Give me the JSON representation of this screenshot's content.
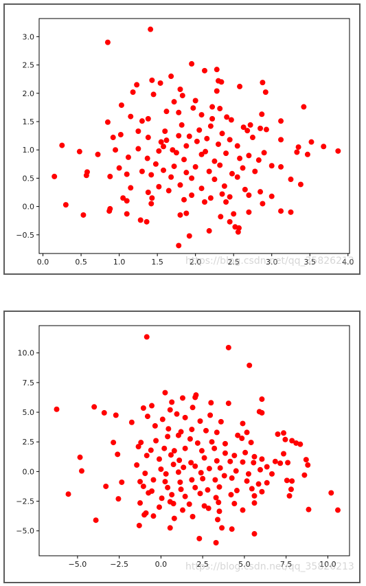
{
  "watermark_top": "https://blog.csdn.net/qq_35826213",
  "watermark_bottom": "https://blog.csdn.net/qq_35826213",
  "chart_data": [
    {
      "type": "scatter",
      "title": "",
      "xlabel": "",
      "ylabel": "",
      "xlim": [
        -0.05,
        4.02
      ],
      "ylim": [
        -0.83,
        3.32
      ],
      "xticks": [
        0.0,
        0.5,
        1.0,
        1.5,
        2.0,
        2.5,
        3.0,
        3.5,
        4.0
      ],
      "xtick_labels": [
        "0.0",
        "0.5",
        "1.0",
        "1.5",
        "2.0",
        "2.5",
        "3.0",
        "3.5",
        "4.0"
      ],
      "yticks": [
        -0.5,
        0.0,
        0.5,
        1.0,
        1.5,
        2.0,
        2.5,
        3.0
      ],
      "ytick_labels": [
        "−0.5",
        "0.0",
        "0.5",
        "1.0",
        "1.5",
        "2.0",
        "2.5",
        "3.0"
      ],
      "grid": false,
      "marker_color": "#ff0000",
      "points": [
        [
          1.41,
          3.13
        ],
        [
          0.85,
          2.9
        ],
        [
          1.95,
          2.52
        ],
        [
          2.12,
          2.4
        ],
        [
          2.28,
          2.42
        ],
        [
          1.68,
          2.3
        ],
        [
          2.3,
          2.22
        ],
        [
          2.34,
          2.2
        ],
        [
          2.88,
          2.19
        ],
        [
          1.43,
          2.23
        ],
        [
          1.54,
          2.18
        ],
        [
          1.23,
          2.15
        ],
        [
          1.8,
          2.07
        ],
        [
          1.18,
          2.02
        ],
        [
          2.58,
          2.12
        ],
        [
          2.92,
          2.02
        ],
        [
          1.45,
          1.98
        ],
        [
          2.28,
          2.04
        ],
        [
          2.0,
          1.87
        ],
        [
          1.83,
          1.96
        ],
        [
          1.03,
          1.79
        ],
        [
          1.97,
          1.74
        ],
        [
          2.22,
          1.76
        ],
        [
          2.32,
          1.73
        ],
        [
          3.42,
          1.76
        ],
        [
          1.62,
          1.68
        ],
        [
          1.78,
          1.66
        ],
        [
          2.08,
          1.62
        ],
        [
          2.41,
          1.58
        ],
        [
          2.87,
          1.63
        ],
        [
          1.15,
          1.59
        ],
        [
          1.38,
          1.55
        ],
        [
          0.85,
          1.49
        ],
        [
          1.3,
          1.51
        ],
        [
          2.47,
          1.53
        ],
        [
          3.12,
          1.51
        ],
        [
          1.82,
          1.44
        ],
        [
          2.2,
          1.42
        ],
        [
          2.63,
          1.4
        ],
        [
          2.72,
          1.44
        ],
        [
          2.85,
          1.38
        ],
        [
          1.25,
          1.33
        ],
        [
          1.6,
          1.33
        ],
        [
          2.05,
          1.35
        ],
        [
          2.35,
          1.29
        ],
        [
          2.68,
          1.34
        ],
        [
          2.93,
          1.36
        ],
        [
          0.92,
          1.22
        ],
        [
          1.38,
          1.22
        ],
        [
          1.78,
          1.25
        ],
        [
          2.15,
          1.2
        ],
        [
          2.45,
          1.18
        ],
        [
          2.75,
          1.22
        ],
        [
          1.02,
          1.27
        ],
        [
          1.62,
          1.17
        ],
        [
          2.02,
          1.15
        ],
        [
          2.3,
          1.1
        ],
        [
          3.12,
          1.18
        ],
        [
          1.55,
          1.14
        ],
        [
          1.88,
          1.07
        ],
        [
          2.55,
          1.07
        ],
        [
          3.35,
          1.05
        ],
        [
          3.52,
          1.14
        ],
        [
          3.68,
          1.06
        ],
        [
          3.87,
          0.98
        ],
        [
          0.25,
          1.08
        ],
        [
          0.48,
          0.97
        ],
        [
          0.72,
          0.92
        ],
        [
          0.95,
          1.0
        ],
        [
          1.25,
          1.02
        ],
        [
          1.52,
          0.98
        ],
        [
          1.75,
          0.95
        ],
        [
          2.08,
          0.92
        ],
        [
          2.4,
          0.94
        ],
        [
          2.7,
          0.9
        ],
        [
          2.9,
          0.95
        ],
        [
          3.33,
          0.96
        ],
        [
          3.47,
          0.92
        ],
        [
          1.12,
          0.87
        ],
        [
          1.37,
          0.85
        ],
        [
          1.85,
          0.83
        ],
        [
          2.25,
          0.8
        ],
        [
          2.58,
          0.85
        ],
        [
          2.83,
          0.82
        ],
        [
          1.48,
          0.75
        ],
        [
          1.72,
          0.71
        ],
        [
          2.0,
          0.7
        ],
        [
          2.32,
          0.73
        ],
        [
          2.62,
          0.68
        ],
        [
          3.0,
          0.72
        ],
        [
          3.12,
          0.7
        ],
        [
          1.0,
          0.68
        ],
        [
          1.3,
          0.62
        ],
        [
          1.58,
          0.64
        ],
        [
          1.88,
          0.6
        ],
        [
          2.18,
          0.62
        ],
        [
          2.48,
          0.58
        ],
        [
          2.78,
          0.62
        ],
        [
          0.58,
          0.61
        ],
        [
          0.57,
          0.55
        ],
        [
          0.15,
          0.53
        ],
        [
          0.88,
          0.53
        ],
        [
          1.1,
          0.57
        ],
        [
          1.42,
          0.56
        ],
        [
          1.68,
          0.52
        ],
        [
          1.95,
          0.5
        ],
        [
          2.25,
          0.48
        ],
        [
          2.55,
          0.52
        ],
        [
          3.25,
          0.48
        ],
        [
          3.38,
          0.39
        ],
        [
          1.15,
          0.33
        ],
        [
          1.52,
          0.35
        ],
        [
          1.8,
          0.38
        ],
        [
          2.08,
          0.32
        ],
        [
          2.38,
          0.36
        ],
        [
          2.65,
          0.3
        ],
        [
          2.85,
          0.26
        ],
        [
          2.35,
          0.22
        ],
        [
          1.38,
          0.25
        ],
        [
          1.65,
          0.28
        ],
        [
          1.95,
          0.2
        ],
        [
          2.2,
          0.15
        ],
        [
          2.45,
          0.17
        ],
        [
          2.7,
          0.2
        ],
        [
          3.0,
          0.18
        ],
        [
          1.05,
          0.15
        ],
        [
          1.1,
          0.1
        ],
        [
          1.43,
          0.15
        ],
        [
          1.85,
          0.12
        ],
        [
          2.12,
          0.08
        ],
        [
          0.3,
          0.03
        ],
        [
          1.42,
          0.05
        ],
        [
          2.4,
          0.08
        ],
        [
          2.88,
          0.05
        ],
        [
          3.12,
          -0.08
        ],
        [
          3.25,
          -0.1
        ],
        [
          0.88,
          -0.04
        ],
        [
          0.87,
          -0.08
        ],
        [
          1.1,
          -0.13
        ],
        [
          1.8,
          -0.15
        ],
        [
          2.5,
          -0.13
        ],
        [
          2.7,
          -0.1
        ],
        [
          0.53,
          -0.15
        ],
        [
          1.88,
          -0.12
        ],
        [
          2.33,
          -0.18
        ],
        [
          1.28,
          -0.24
        ],
        [
          1.36,
          -0.27
        ],
        [
          2.45,
          -0.27
        ],
        [
          2.52,
          -0.36
        ],
        [
          2.57,
          -0.38
        ],
        [
          2.18,
          -0.43
        ],
        [
          2.56,
          -0.45
        ],
        [
          1.92,
          -0.52
        ],
        [
          1.78,
          -0.69
        ],
        [
          1.58,
          1.06
        ],
        [
          1.7,
          1.0
        ],
        [
          2.13,
          0.97
        ],
        [
          1.92,
          1.24
        ],
        [
          2.22,
          1.55
        ],
        [
          1.72,
          1.85
        ]
      ]
    },
    {
      "type": "scatter",
      "title": "",
      "xlabel": "",
      "ylabel": "",
      "xlim": [
        -7.3,
        11.3
      ],
      "ylim": [
        -7.1,
        12.3
      ],
      "xticks": [
        -5.0,
        -2.5,
        0.0,
        2.5,
        5.0,
        7.5,
        10.0
      ],
      "xtick_labels": [
        "−5.0",
        "−2.5",
        "0.0",
        "2.5",
        "5.0",
        "7.5",
        "10.0"
      ],
      "yticks": [
        -5.0,
        -2.5,
        0.0,
        2.5,
        5.0,
        7.5,
        10.0
      ],
      "ytick_labels": [
        "−5.0",
        "−2.5",
        "0.0",
        "2.5",
        "5.0",
        "7.5",
        "10.0"
      ],
      "grid": false,
      "marker_color": "#ff0000",
      "points": [
        [
          -0.85,
          11.35
        ],
        [
          4.05,
          10.45
        ],
        [
          5.3,
          8.95
        ],
        [
          0.25,
          6.65
        ],
        [
          1.3,
          6.2
        ],
        [
          2.05,
          6.25
        ],
        [
          2.1,
          6.45
        ],
        [
          -6.25,
          5.25
        ],
        [
          -4.0,
          5.45
        ],
        [
          -3.4,
          4.95
        ],
        [
          -2.7,
          4.75
        ],
        [
          -0.55,
          5.55
        ],
        [
          0.65,
          5.85
        ],
        [
          1.9,
          5.4
        ],
        [
          3.0,
          5.8
        ],
        [
          4.05,
          5.75
        ],
        [
          6.05,
          6.1
        ],
        [
          5.9,
          5.05
        ],
        [
          6.05,
          4.95
        ],
        [
          -1.05,
          5.35
        ],
        [
          -1.75,
          4.15
        ],
        [
          -0.8,
          4.65
        ],
        [
          0.1,
          4.4
        ],
        [
          0.55,
          5.2
        ],
        [
          0.95,
          4.85
        ],
        [
          1.45,
          4.55
        ],
        [
          2.35,
          4.25
        ],
        [
          2.95,
          4.75
        ],
        [
          3.6,
          4.2
        ],
        [
          4.9,
          4.05
        ],
        [
          -0.35,
          3.85
        ],
        [
          0.45,
          3.6
        ],
        [
          1.2,
          3.35
        ],
        [
          1.85,
          3.55
        ],
        [
          2.7,
          3.45
        ],
        [
          3.35,
          3.3
        ],
        [
          4.6,
          3.05
        ],
        [
          5.15,
          3.3
        ],
        [
          7.0,
          3.15
        ],
        [
          7.35,
          3.25
        ],
        [
          -2.85,
          2.45
        ],
        [
          -1.2,
          2.45
        ],
        [
          -0.3,
          2.6
        ],
        [
          0.4,
          2.95
        ],
        [
          1.05,
          3.05
        ],
        [
          1.75,
          2.75
        ],
        [
          2.2,
          2.4
        ],
        [
          3.05,
          2.5
        ],
        [
          3.85,
          2.35
        ],
        [
          4.85,
          2.8
        ],
        [
          5.4,
          2.45
        ],
        [
          7.45,
          2.7
        ],
        [
          7.85,
          2.6
        ],
        [
          8.1,
          2.4
        ],
        [
          8.35,
          2.3
        ],
        [
          -1.35,
          2.1
        ],
        [
          -0.6,
          1.8
        ],
        [
          0.2,
          1.95
        ],
        [
          0.8,
          1.75
        ],
        [
          1.45,
          1.95
        ],
        [
          2.45,
          1.75
        ],
        [
          3.2,
          1.95
        ],
        [
          3.85,
          1.55
        ],
        [
          4.4,
          1.35
        ],
        [
          5.05,
          1.6
        ],
        [
          5.6,
          1.25
        ],
        [
          6.05,
          1.05
        ],
        [
          7.35,
          1.5
        ],
        [
          8.7,
          1.0
        ],
        [
          -2.6,
          1.45
        ],
        [
          -0.85,
          1.35
        ],
        [
          -0.1,
          1.05
        ],
        [
          0.6,
          1.4
        ],
        [
          1.1,
          0.95
        ],
        [
          1.8,
          0.75
        ],
        [
          2.6,
          1.15
        ],
        [
          3.35,
          0.9
        ],
        [
          4.15,
          0.85
        ],
        [
          4.9,
          0.8
        ],
        [
          5.55,
          0.75
        ],
        [
          6.35,
          0.4
        ],
        [
          6.85,
          0.85
        ],
        [
          7.6,
          0.75
        ],
        [
          8.8,
          0.55
        ],
        [
          -4.85,
          1.2
        ],
        [
          -1.45,
          0.55
        ],
        [
          0.0,
          0.2
        ],
        [
          0.75,
          0.6
        ],
        [
          1.35,
          0.35
        ],
        [
          2.05,
          0.45
        ],
        [
          2.9,
          0.25
        ],
        [
          3.55,
          0.3
        ],
        [
          4.5,
          0.05
        ],
        [
          5.95,
          0.15
        ],
        [
          7.15,
          0.7
        ],
        [
          -4.75,
          0.05
        ],
        [
          -0.95,
          -0.15
        ],
        [
          0.3,
          -0.2
        ],
        [
          1.05,
          -0.05
        ],
        [
          2.4,
          -0.1
        ],
        [
          3.8,
          -0.35
        ],
        [
          5.25,
          -0.2
        ],
        [
          6.65,
          -0.2
        ],
        [
          8.6,
          -0.3
        ],
        [
          -2.35,
          -0.9
        ],
        [
          -1.25,
          -0.85
        ],
        [
          -0.45,
          -0.7
        ],
        [
          0.25,
          -0.85
        ],
        [
          1.15,
          -0.9
        ],
        [
          1.85,
          -0.7
        ],
        [
          2.5,
          -0.6
        ],
        [
          3.25,
          -0.7
        ],
        [
          4.25,
          -0.55
        ],
        [
          5.15,
          -0.8
        ],
        [
          5.85,
          -1.05
        ],
        [
          6.35,
          -0.95
        ],
        [
          7.55,
          -0.75
        ],
        [
          7.85,
          -0.8
        ],
        [
          -3.3,
          -1.25
        ],
        [
          -1.05,
          -1.25
        ],
        [
          -0.55,
          -1.65
        ],
        [
          0.4,
          -1.35
        ],
        [
          1.2,
          -1.5
        ],
        [
          2.05,
          -1.35
        ],
        [
          2.8,
          -1.55
        ],
        [
          3.5,
          -1.3
        ],
        [
          4.55,
          -1.6
        ],
        [
          5.45,
          -1.45
        ],
        [
          6.05,
          -1.7
        ],
        [
          7.8,
          -1.5
        ],
        [
          -5.55,
          -1.9
        ],
        [
          -2.55,
          -2.3
        ],
        [
          -0.75,
          -1.8
        ],
        [
          0.05,
          -2.25
        ],
        [
          0.65,
          -1.95
        ],
        [
          1.45,
          -2.1
        ],
        [
          2.35,
          -1.85
        ],
        [
          3.3,
          -2.2
        ],
        [
          4.2,
          -1.95
        ],
        [
          5.6,
          -2.05
        ],
        [
          7.7,
          -2.05
        ],
        [
          10.2,
          -1.8
        ],
        [
          -1.25,
          -2.65
        ],
        [
          0.55,
          -2.55
        ],
        [
          0.75,
          -2.7
        ],
        [
          1.7,
          -2.75
        ],
        [
          2.6,
          -2.9
        ],
        [
          3.45,
          -2.6
        ],
        [
          4.4,
          -2.7
        ],
        [
          5.6,
          -2.65
        ],
        [
          -0.1,
          -3.0
        ],
        [
          1.3,
          -3.25
        ],
        [
          2.85,
          -3.1
        ],
        [
          3.5,
          -3.35
        ],
        [
          4.9,
          -3.25
        ],
        [
          8.85,
          -3.2
        ],
        [
          10.6,
          -3.25
        ],
        [
          -1.0,
          -3.65
        ],
        [
          -0.45,
          -3.75
        ],
        [
          0.8,
          -3.95
        ],
        [
          1.9,
          -3.8
        ],
        [
          3.4,
          -4.05
        ],
        [
          -3.9,
          -4.1
        ],
        [
          -1.3,
          -4.55
        ],
        [
          -0.9,
          -3.5
        ],
        [
          0.55,
          -4.75
        ],
        [
          3.65,
          -4.75
        ],
        [
          4.25,
          -4.85
        ],
        [
          5.6,
          -5.25
        ],
        [
          2.3,
          -5.65
        ],
        [
          3.3,
          -6.0
        ]
      ]
    }
  ]
}
